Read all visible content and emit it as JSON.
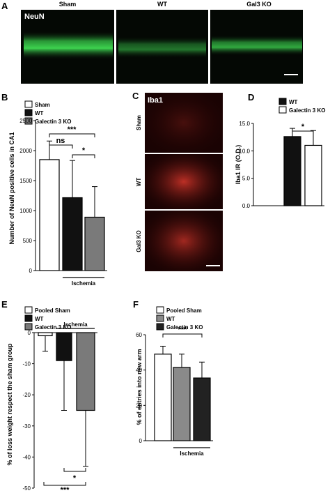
{
  "panels": {
    "A": {
      "letter": "A",
      "stain": "NeuN",
      "columns": [
        "Sham",
        "WT",
        "Gal3 KO"
      ]
    },
    "C": {
      "letter": "C",
      "stain": "Iba1",
      "rows": [
        "Sham",
        "WT",
        "Gal3 KO"
      ]
    }
  },
  "colors": {
    "white_bar": "#ffffff",
    "wt_bar": "#111111",
    "ko_bar": "#7a7a7a",
    "sham_F": "#ffffff",
    "wt_F": "#8a8a8a",
    "ko_F": "#222222",
    "green": "#35c24a",
    "red": "#e0302a"
  },
  "chart_data": [
    {
      "id": "B",
      "letter": "B",
      "type": "bar",
      "ylabel": "Number of NeuN positive cells in CA1",
      "legend": [
        "Sham",
        "WT",
        "Galectin 3 KO"
      ],
      "categories": [
        "Sham",
        "WT",
        "Galectin 3 KO"
      ],
      "values": [
        1850,
        1215,
        890
      ],
      "errors": [
        310,
        620,
        510
      ],
      "ylim": [
        0,
        2500
      ],
      "ticks": [
        "0",
        "500",
        "1000",
        "1500",
        "2000",
        "2500"
      ],
      "group_label": "Ischemia",
      "significance": [
        "ns",
        "***",
        "*"
      ]
    },
    {
      "id": "D",
      "letter": "D",
      "type": "bar",
      "ylabel": "Iba1 IR (O.D.)",
      "legend": [
        "WT",
        "Galectin 3 KO"
      ],
      "categories": [
        "WT",
        "Galectin 3 KO"
      ],
      "values": [
        12.6,
        11.0
      ],
      "errors": [
        1.5,
        2.7
      ],
      "ylim": [
        0,
        15
      ],
      "ticks": [
        "0.0",
        "5.0",
        "10.0",
        "15.0"
      ],
      "significance": [
        "*"
      ]
    },
    {
      "id": "E",
      "letter": "E",
      "type": "bar",
      "ylabel": "% of loss weight respect the sham group",
      "legend": [
        "Pooled Sham",
        "WT",
        "Galectin 3 KO"
      ],
      "categories": [
        "Pooled Sham",
        "WT",
        "Galectin 3 KO"
      ],
      "values": [
        -1,
        -9,
        -25
      ],
      "errors": [
        5,
        16,
        18
      ],
      "ylim": [
        -50,
        0
      ],
      "ticks": [
        "0",
        "-10",
        "-20",
        "-30",
        "-40",
        "-50"
      ],
      "group_label": "Ischemia",
      "significance": [
        "*",
        "***"
      ]
    },
    {
      "id": "F",
      "letter": "F",
      "type": "bar",
      "ylabel": "% of entries into new arm",
      "legend": [
        "Pooled Sham",
        "WT",
        "Galectin 3 KO"
      ],
      "categories": [
        "Pooled Sham",
        "WT",
        "Galectin 3 KO"
      ],
      "values": [
        49,
        41.5,
        35.5
      ],
      "errors": [
        4.5,
        7.5,
        9
      ],
      "ylim": [
        0,
        60
      ],
      "ticks": [
        "0",
        "20",
        "40",
        "60"
      ],
      "group_label": "Ischemia",
      "significance": [
        "***"
      ]
    }
  ]
}
